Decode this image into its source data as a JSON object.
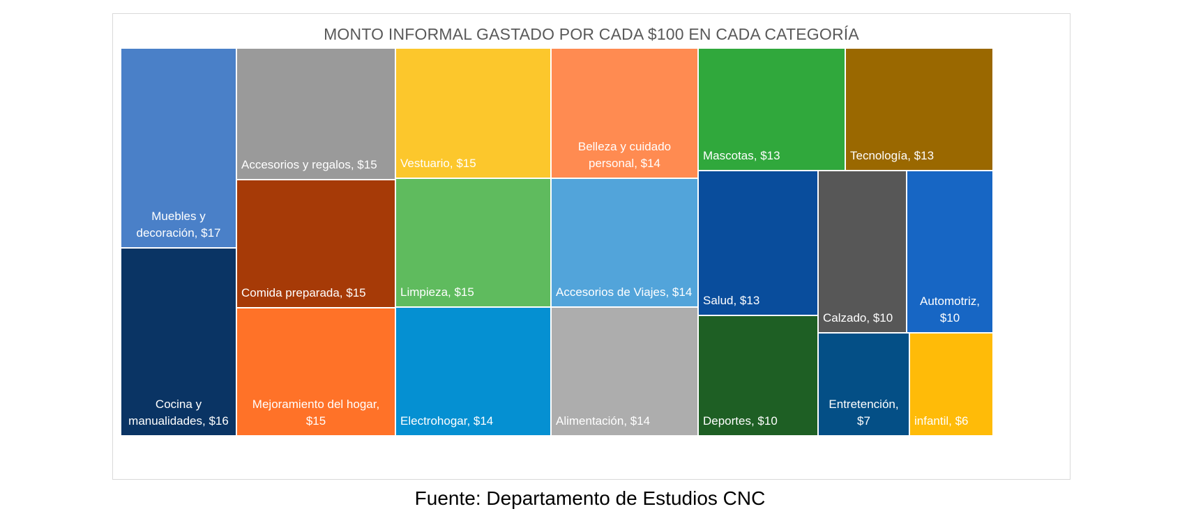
{
  "chart_data": {
    "type": "treemap",
    "title": "MONTO INFORMAL GASTADO POR CADA $100 EN CADA CATEGORÍA",
    "unit": "$",
    "items": [
      {
        "label": "Muebles y decoración, $17",
        "category": "Muebles y decoración",
        "value": 17,
        "color": "#4a80c8"
      },
      {
        "label": "Cocina y manualidades, $16",
        "category": "Cocina y manualidades",
        "value": 16,
        "color": "#0a3464"
      },
      {
        "label": "Accesorios y regalos, $15",
        "category": "Accesorios y regalos",
        "value": 15,
        "color": "#9a9a9a"
      },
      {
        "label": "Comida preparada, $15",
        "category": "Comida preparada",
        "value": 15,
        "color": "#a63a07"
      },
      {
        "label": "Mejoramiento del hogar, $15",
        "category": "Mejoramiento del hogar",
        "value": 15,
        "color": "#ff7228"
      },
      {
        "label": "Vestuario, $15",
        "category": "Vestuario",
        "value": 15,
        "color": "#fcc72c"
      },
      {
        "label": "Limpieza, $15",
        "category": "Limpieza",
        "value": 15,
        "color": "#5fbb5e"
      },
      {
        "label": "Electrohogar, $14",
        "category": "Electrohogar",
        "value": 14,
        "color": "#0590d2"
      },
      {
        "label": "Belleza y cuidado personal, $14",
        "category": "Belleza y cuidado personal",
        "value": 14,
        "color": "#ff8b51"
      },
      {
        "label": "Accesorios de Viajes, $14",
        "category": "Accesorios de Viajes",
        "value": 14,
        "color": "#52a4da"
      },
      {
        "label": "Alimentación, $14",
        "category": "Alimentación",
        "value": 14,
        "color": "#adadad"
      },
      {
        "label": "Mascotas, $13",
        "category": "Mascotas",
        "value": 13,
        "color": "#30a83c"
      },
      {
        "label": "Tecnología, $13",
        "category": "Tecnología",
        "value": 13,
        "color": "#9a6800"
      },
      {
        "label": "Salud, $13",
        "category": "Salud",
        "value": 13,
        "color": "#094d9c"
      },
      {
        "label": "Deportes, $10",
        "category": "Deportes",
        "value": 10,
        "color": "#1e5f24"
      },
      {
        "label": "Calzado, $10",
        "category": "Calzado",
        "value": 10,
        "color": "#575757"
      },
      {
        "label": "Automotriz, $10",
        "category": "Automotriz",
        "value": 10,
        "color": "#1766c4"
      },
      {
        "label": "Entretención, $7",
        "category": "Entretención",
        "value": 7,
        "color": "#044f86"
      },
      {
        "label": "infantil, $6",
        "category": "infantil",
        "value": 6,
        "color": "#ffbb08"
      }
    ]
  },
  "source": "Fuente: Departamento de Estudios CNC"
}
